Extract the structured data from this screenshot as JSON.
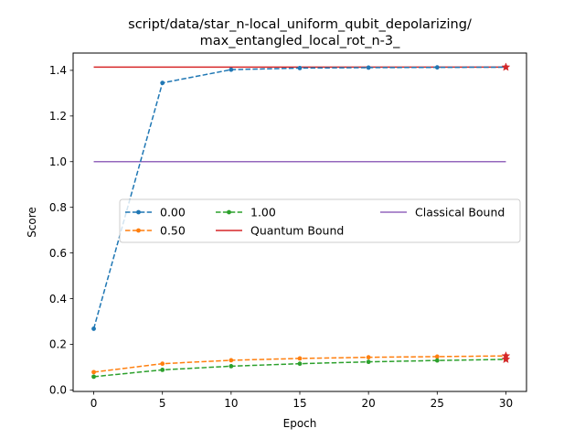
{
  "chart_data": {
    "type": "line",
    "title_line1": "script/data/star_n-local_uniform_qubit_depolarizing/",
    "title_line2": "max_entangled_local_rot_n-3_",
    "xlabel": "Epoch",
    "ylabel": "Score",
    "xlim": [
      -1.5,
      31.5
    ],
    "ylim": [
      -0.0066,
      1.4758
    ],
    "xticks": [
      0,
      5,
      10,
      15,
      20,
      25,
      30
    ],
    "yticks": [
      0.0,
      0.2,
      0.4,
      0.6,
      0.8,
      1.0,
      1.2,
      1.4
    ],
    "ytick_labels": [
      "0.0",
      "0.2",
      "0.4",
      "0.6",
      "0.8",
      "1.0",
      "1.2",
      "1.4"
    ],
    "x": [
      0,
      5,
      10,
      15,
      20,
      25,
      30
    ],
    "series": [
      {
        "name": "0.00",
        "color": "#1f77b4",
        "style": "dashed",
        "marker": "dot",
        "values": [
          0.268,
          1.345,
          1.403,
          1.41,
          1.412,
          1.413,
          1.414
        ],
        "best": 1.414
      },
      {
        "name": "0.50",
        "color": "#ff7f0e",
        "style": "dashed",
        "marker": "dot",
        "values": [
          0.078,
          0.115,
          0.13,
          0.138,
          0.143,
          0.146,
          0.149
        ],
        "best": 0.149
      },
      {
        "name": "1.00",
        "color": "#2ca02c",
        "style": "dashed",
        "marker": "dot",
        "values": [
          0.058,
          0.088,
          0.104,
          0.115,
          0.123,
          0.129,
          0.134
        ],
        "best": 0.134
      }
    ],
    "reference_lines": [
      {
        "name": "Quantum Bound",
        "color": "#d62728",
        "value": 1.4142
      },
      {
        "name": "Classical Bound",
        "color": "#9467bd",
        "value": 1.0
      }
    ],
    "legend": {
      "placement": "center-left",
      "columns": 3
    }
  }
}
